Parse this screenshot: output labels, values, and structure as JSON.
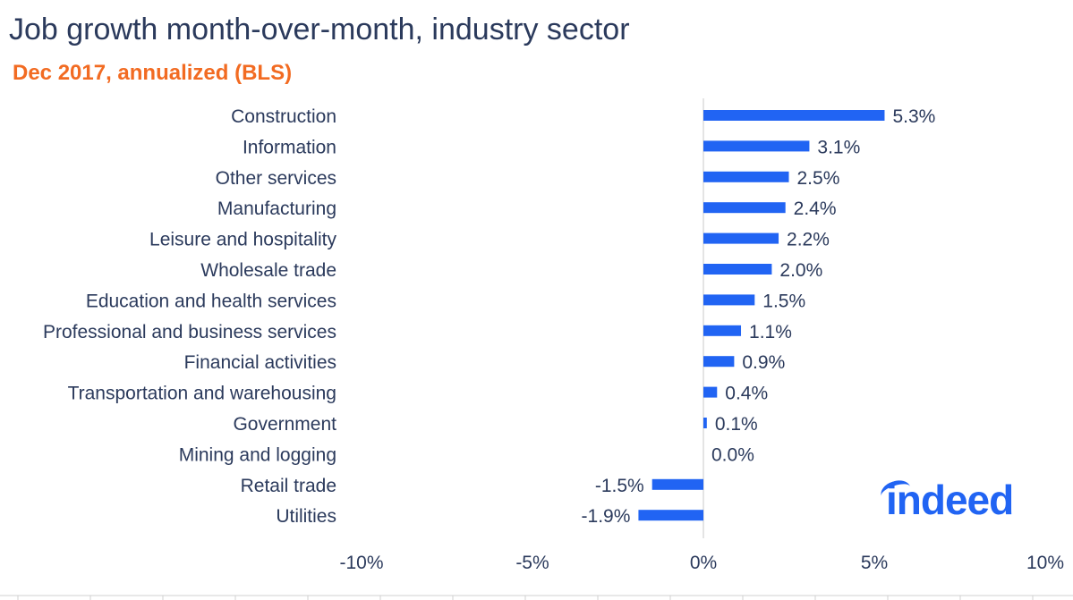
{
  "title": "Job growth month-over-month, industry sector",
  "subtitle": "Dec 2017, annualized (BLS)",
  "brand": {
    "logo_text": "indeed",
    "logo_color": "#2164f3"
  },
  "colors": {
    "bar": "#2164f3",
    "title": "#2b3a5c",
    "subtitle": "#f26b22",
    "text": "#2b3a5c"
  },
  "chart_data": {
    "type": "bar",
    "orientation": "horizontal",
    "title": "Job growth month-over-month, industry sector",
    "subtitle": "Dec 2017, annualized (BLS)",
    "categories": [
      "Construction",
      "Information",
      "Other services",
      "Manufacturing",
      "Leisure and hospitality",
      "Wholesale trade",
      "Education and health services",
      "Professional and business services",
      "Financial activities",
      "Transportation and warehousing",
      "Government",
      "Mining and logging",
      "Retail trade",
      "Utilities"
    ],
    "values": [
      5.3,
      3.1,
      2.5,
      2.4,
      2.2,
      2.0,
      1.5,
      1.1,
      0.9,
      0.4,
      0.1,
      0.0,
      -1.5,
      -1.9
    ],
    "value_labels": [
      "5.3%",
      "3.1%",
      "2.5%",
      "2.4%",
      "2.2%",
      "2.0%",
      "1.5%",
      "1.1%",
      "0.9%",
      "0.4%",
      "0.1%",
      "0.0%",
      "-1.5%",
      "-1.9%"
    ],
    "xlim": [
      -10,
      10
    ],
    "xticks": [
      -10,
      -5,
      0,
      5,
      10
    ],
    "xtick_labels": [
      "-10%",
      "-5%",
      "0%",
      "5%",
      "10%"
    ],
    "grid": false,
    "legend": "none"
  }
}
